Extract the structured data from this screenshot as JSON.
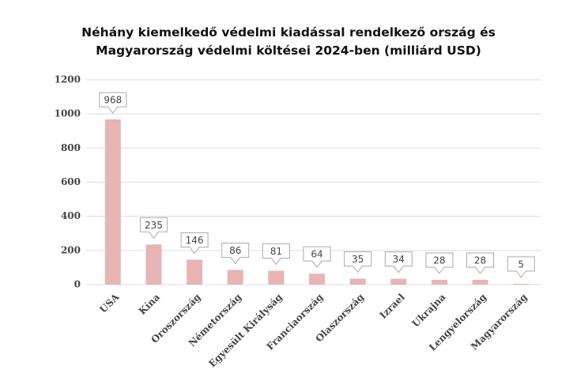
{
  "chart_data": {
    "type": "bar",
    "title": "Néhány kiemelkedő védelmi kiadással rendelkező ország és Magyarország védelmi költései 2024-ben (milliárd USD)",
    "categories": [
      "USA",
      "Kína",
      "Oroszország",
      "Németország",
      "Egyesült Királyság",
      "Franciaország",
      "Olaszország",
      "Izrael",
      "Ukrajna",
      "Lengyelország",
      "Magyarország"
    ],
    "values": [
      968,
      235,
      146,
      86,
      81,
      64,
      35,
      34,
      28,
      28,
      5
    ],
    "color": "#e8b4b4",
    "ylim": [
      0,
      1200
    ],
    "yticks": [
      0,
      200,
      400,
      600,
      800,
      1000,
      1200
    ],
    "grid": true
  }
}
